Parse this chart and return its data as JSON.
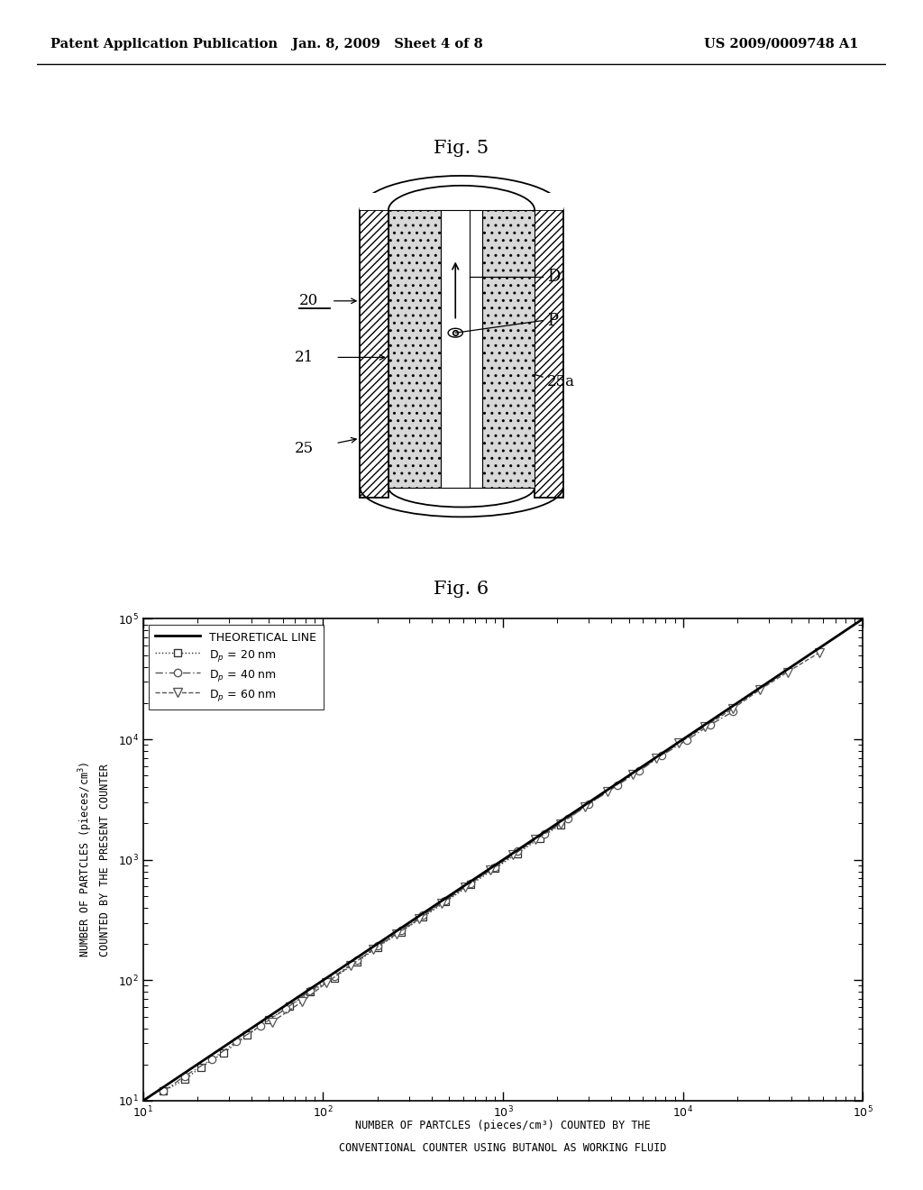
{
  "header_left": "Patent Application Publication",
  "header_mid": "Jan. 8, 2009   Sheet 4 of 8",
  "header_right": "US 2009/0009748 A1",
  "fig5_title": "Fig. 5",
  "fig6_title": "Fig. 6",
  "fig6_ylabel_line1": "NUMBER OF PARTCLES (pieces/cm",
  "fig6_ylabel_line2": "COUNTED BY THE PRESENT COUNTER",
  "fig6_xlabel_line1": "NUMBER OF PARTCLES (pieces/cm³) COUNTED BY THE",
  "fig6_xlabel_line2": "CONVENTIONAL COUNTER USING BUTANOL AS WORKING FLUID",
  "legend_theoretical": "THEORETICAL LINE",
  "xmin": 10,
  "xmax": 100000,
  "ymin": 10,
  "ymax": 100000,
  "background_color": "#ffffff",
  "data_20nm_x": [
    13,
    17,
    21,
    28,
    38,
    50,
    65,
    85,
    115,
    155,
    200,
    270,
    360,
    480,
    660,
    900,
    1200,
    1600,
    2100
  ],
  "data_20nm_y": [
    12,
    15,
    19,
    25,
    35,
    47,
    61,
    80,
    105,
    142,
    188,
    252,
    335,
    450,
    620,
    845,
    1130,
    1510,
    1960
  ],
  "data_40nm_x": [
    13,
    17,
    24,
    33,
    45,
    62,
    85,
    115,
    155,
    200,
    270,
    360,
    480,
    660,
    900,
    1200,
    1700,
    2300,
    3000,
    4300,
    5700,
    7600,
    10500,
    14200,
    19000
  ],
  "data_40nm_y": [
    12,
    16,
    22,
    31,
    42,
    58,
    82,
    108,
    146,
    192,
    258,
    347,
    460,
    638,
    872,
    1190,
    1640,
    2200,
    2900,
    4130,
    5450,
    7320,
    9850,
    13200,
    17000
  ],
  "data_60nm_x": [
    52,
    76,
    104,
    142,
    190,
    256,
    342,
    456,
    617,
    855,
    1140,
    1520,
    2090,
    2850,
    3800,
    5230,
    7130,
    9500,
    13300,
    19000,
    26600,
    38000,
    57000
  ],
  "data_60nm_y": [
    45,
    66,
    95,
    132,
    180,
    242,
    323,
    437,
    598,
    826,
    1100,
    1472,
    1995,
    2755,
    3705,
    5130,
    6935,
    9310,
    12825,
    18050,
    25650,
    36100,
    52250
  ]
}
